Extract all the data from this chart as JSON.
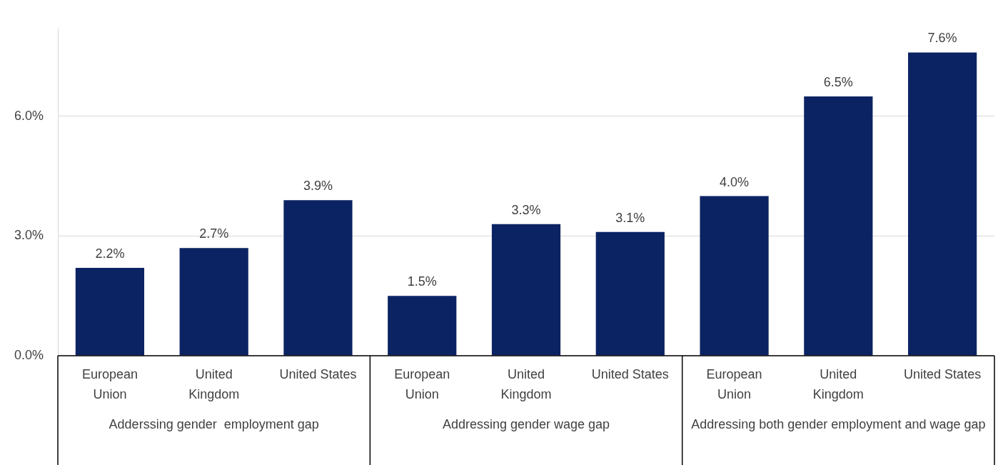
{
  "chart_data": {
    "type": "bar",
    "categories": [
      "European Union",
      "United Kingdom",
      "United States",
      "European Union",
      "United Kingdom",
      "United States",
      "European Union",
      "United Kingdom",
      "United States"
    ],
    "values": [
      2.2,
      2.7,
      3.9,
      1.5,
      3.3,
      3.1,
      4.0,
      6.5,
      7.6
    ],
    "value_labels": [
      "2.2%",
      "2.7%",
      "3.9%",
      "1.5%",
      "3.3%",
      "3.1%",
      "4.0%",
      "6.5%",
      "7.6%"
    ],
    "color": "#0c2363",
    "yticks": [
      {
        "value": 0,
        "label": "0.0%"
      },
      {
        "value": 3,
        "label": "3.0%"
      },
      {
        "value": 6,
        "label": "6.0%"
      }
    ],
    "ylim": [
      0,
      8.2
    ],
    "grid": "y",
    "annotations": [
      "Adderssing gender  employment gap",
      "Addressing gender wage gap",
      "Addressing both gender employment and wage gap"
    ]
  }
}
